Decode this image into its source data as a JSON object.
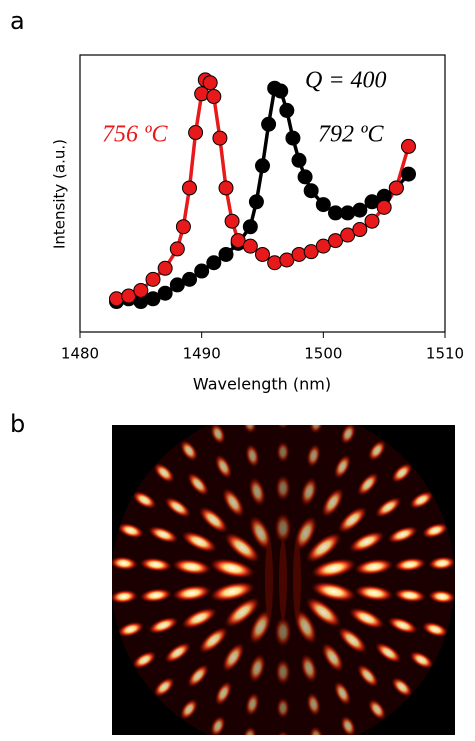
{
  "chart_data": {
    "type": "scatter",
    "panel_label": "a",
    "xlabel": "Wavelength (nm)",
    "ylabel": "Intensity (a.u.)",
    "annotation": "Q = 400",
    "xlim": [
      1480,
      1510
    ],
    "xticks": [
      1480,
      1490,
      1500,
      1510
    ],
    "ylim": [
      0,
      1
    ],
    "series": [
      {
        "name": "792 ºC",
        "color": "#000000",
        "x": [
          1483,
          1484,
          1485,
          1486,
          1487,
          1488,
          1489,
          1490,
          1491,
          1492,
          1493,
          1494,
          1494.5,
          1495,
          1495.5,
          1496,
          1496.5,
          1497,
          1497.5,
          1498,
          1498.5,
          1499,
          1500,
          1501,
          1502,
          1503,
          1504,
          1505,
          1506,
          1507
        ],
        "values": [
          0.11,
          0.12,
          0.11,
          0.12,
          0.14,
          0.17,
          0.19,
          0.22,
          0.25,
          0.28,
          0.32,
          0.38,
          0.47,
          0.6,
          0.75,
          0.88,
          0.87,
          0.8,
          0.7,
          0.62,
          0.56,
          0.51,
          0.46,
          0.43,
          0.43,
          0.44,
          0.47,
          0.49,
          0.52,
          0.57
        ]
      },
      {
        "name": "756 ºC",
        "color": "#e8191b",
        "x": [
          1483,
          1484,
          1485,
          1486,
          1487,
          1488,
          1488.5,
          1489,
          1489.5,
          1490,
          1490.3,
          1490.7,
          1491,
          1491.5,
          1492,
          1492.5,
          1493,
          1494,
          1495,
          1496,
          1497,
          1498,
          1499,
          1500,
          1501,
          1502,
          1503,
          1504,
          1505,
          1506,
          1507
        ],
        "values": [
          0.12,
          0.13,
          0.15,
          0.19,
          0.23,
          0.3,
          0.38,
          0.52,
          0.72,
          0.86,
          0.91,
          0.9,
          0.85,
          0.7,
          0.52,
          0.4,
          0.33,
          0.31,
          0.28,
          0.25,
          0.26,
          0.28,
          0.29,
          0.31,
          0.33,
          0.35,
          0.37,
          0.4,
          0.45,
          0.52,
          0.67
        ]
      }
    ]
  },
  "image_panel": {
    "panel_label": "b"
  }
}
